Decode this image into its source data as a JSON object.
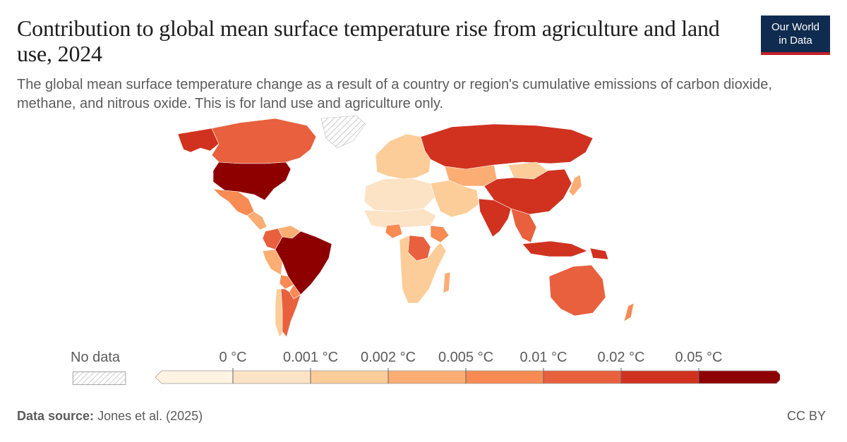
{
  "title": "Contribution to global mean surface temperature rise from agriculture and land use, 2024",
  "subtitle": "The global mean surface temperature change as a result of a country or region's cumulative emissions of carbon dioxide, methane, and nitrous oxide. This is for land use and agriculture only.",
  "logo": {
    "line1": "Our World",
    "line2": "in Data"
  },
  "legend": {
    "no_data_label": "No data",
    "bins": [
      {
        "label": "0 °C",
        "color": "#fff3e3"
      },
      {
        "label": "0.001 °C",
        "color": "#fde3c6"
      },
      {
        "label": "0.002 °C",
        "color": "#fccd98"
      },
      {
        "label": "0.005 °C",
        "color": "#fbad73"
      },
      {
        "label": "0.01 °C",
        "color": "#f88a53"
      },
      {
        "label": "0.02 °C",
        "color": "#e8603e"
      },
      {
        "label": "0.05 °C",
        "color": "#d0321f"
      },
      {
        "label": "",
        "color": "#8e0000"
      }
    ]
  },
  "footer": {
    "source_label": "Data source:",
    "source_value": "Jones et al. (2025)",
    "license": "CC BY"
  },
  "map_regions": [
    {
      "name": "united-states",
      "color": "#8e0000"
    },
    {
      "name": "alaska",
      "color": "#d0321f"
    },
    {
      "name": "canada",
      "color": "#e8603e"
    },
    {
      "name": "greenland",
      "color": "no-data"
    },
    {
      "name": "mexico",
      "color": "#f88a53"
    },
    {
      "name": "central-america",
      "color": "#fbad73"
    },
    {
      "name": "colombia",
      "color": "#e8603e"
    },
    {
      "name": "venezuela",
      "color": "#fbad73"
    },
    {
      "name": "peru",
      "color": "#fbad73"
    },
    {
      "name": "bolivia",
      "color": "#f88a53"
    },
    {
      "name": "brazil",
      "color": "#8e0000"
    },
    {
      "name": "argentina",
      "color": "#e8603e"
    },
    {
      "name": "chile",
      "color": "#fccd98"
    },
    {
      "name": "paraguay",
      "color": "#f88a53"
    },
    {
      "name": "europe",
      "color": "#fccd98"
    },
    {
      "name": "russia",
      "color": "#d0321f"
    },
    {
      "name": "kazakhstan",
      "color": "#fbad73"
    },
    {
      "name": "mongolia",
      "color": "#fccd98"
    },
    {
      "name": "china",
      "color": "#d0321f"
    },
    {
      "name": "india",
      "color": "#d0321f"
    },
    {
      "name": "southeast-asia",
      "color": "#e8603e"
    },
    {
      "name": "indonesia",
      "color": "#d0321f"
    },
    {
      "name": "middle-east",
      "color": "#fccd98"
    },
    {
      "name": "north-africa",
      "color": "#fde3c6"
    },
    {
      "name": "sahel",
      "color": "#fde3c6"
    },
    {
      "name": "nigeria",
      "color": "#f88a53"
    },
    {
      "name": "ethiopia",
      "color": "#f88a53"
    },
    {
      "name": "dr-congo",
      "color": "#e8603e"
    },
    {
      "name": "southern-africa",
      "color": "#fccd98"
    },
    {
      "name": "madagascar",
      "color": "#fbad73"
    },
    {
      "name": "australia",
      "color": "#e8603e"
    },
    {
      "name": "new-zealand",
      "color": "#f88a53"
    },
    {
      "name": "japan",
      "color": "#fbad73"
    },
    {
      "name": "papua-new-guinea",
      "color": "#d0321f"
    }
  ]
}
